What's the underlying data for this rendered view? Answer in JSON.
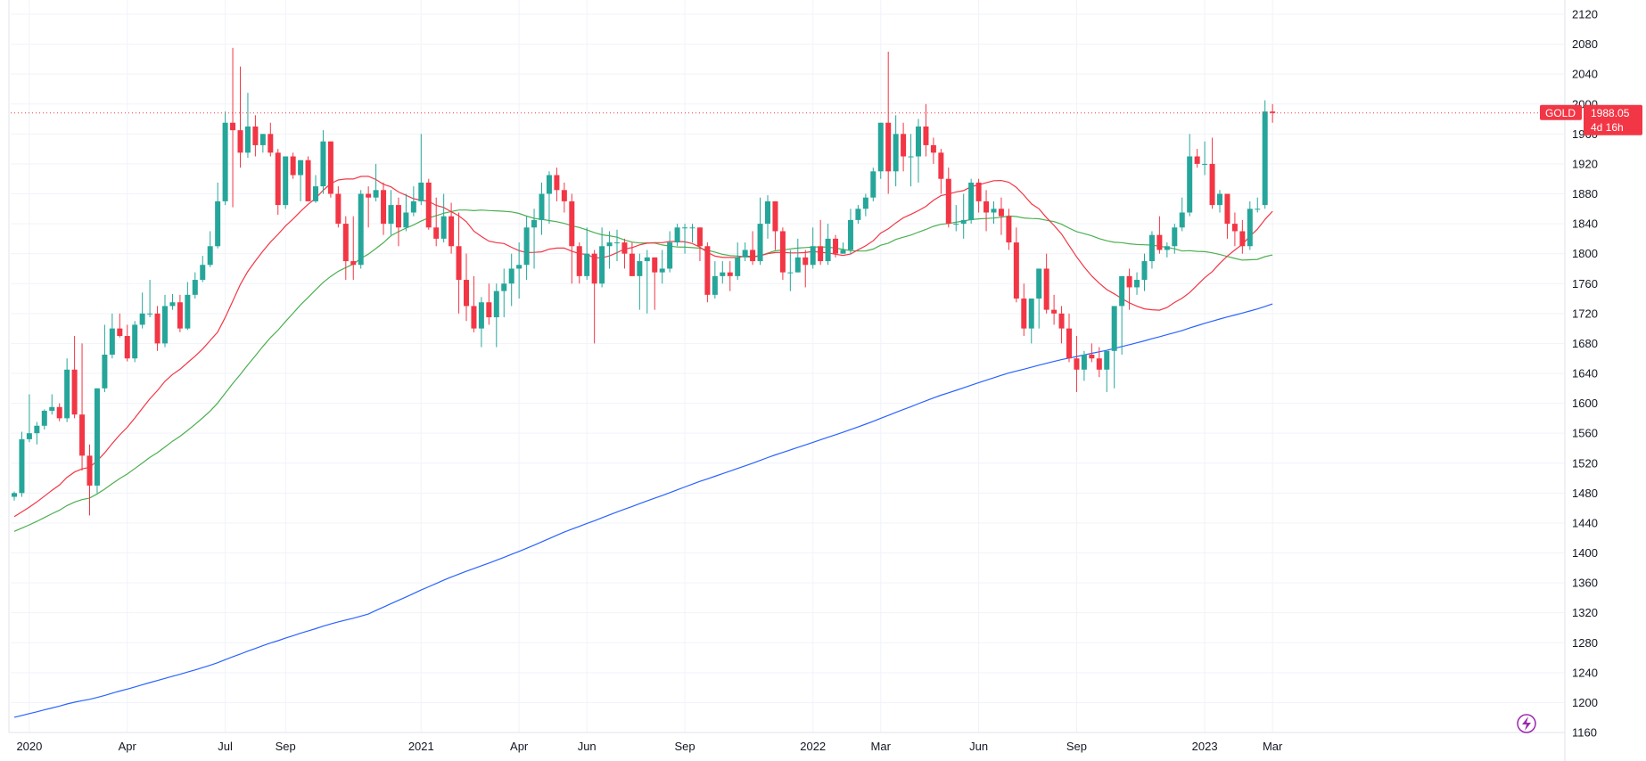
{
  "chart_data": {
    "type": "candlestick",
    "symbol": "GOLD",
    "interval": "1W",
    "ylim": [
      1160,
      2120
    ],
    "y_ticks": [
      1160,
      1200,
      1240,
      1280,
      1320,
      1360,
      1400,
      1440,
      1480,
      1520,
      1560,
      1600,
      1640,
      1680,
      1720,
      1760,
      1800,
      1840,
      1880,
      1920,
      1960,
      2000,
      2040,
      2080,
      2120
    ],
    "x_tick_labels": [
      {
        "label": "2020",
        "week": 2
      },
      {
        "label": "Apr",
        "week": 15
      },
      {
        "label": "Jul",
        "week": 28
      },
      {
        "label": "Sep",
        "week": 36
      },
      {
        "label": "2021",
        "week": 54
      },
      {
        "label": "Apr",
        "week": 67
      },
      {
        "label": "Jun",
        "week": 76
      },
      {
        "label": "Sep",
        "week": 89
      },
      {
        "label": "2022",
        "week": 106
      },
      {
        "label": "Mar",
        "week": 115
      },
      {
        "label": "Jun",
        "week": 128
      },
      {
        "label": "Sep",
        "week": 141
      },
      {
        "label": "2023",
        "week": 158
      },
      {
        "label": "Mar",
        "week": 167
      }
    ],
    "last_price": {
      "symbol": "GOLD",
      "price": "1988.05",
      "countdown": "4d 16h",
      "value": 1988.05
    },
    "colors": {
      "up": "#26a69a",
      "down": "#f23645",
      "ma_fast": "#f23645",
      "ma_mid": "#4caf50",
      "ma_slow": "#2962ff",
      "grid": "#f0f3fa"
    },
    "closes": [
      1480,
      1552,
      1560,
      1570,
      1590,
      1595,
      1580,
      1645,
      1585,
      1530,
      1490,
      1620,
      1665,
      1700,
      1690,
      1660,
      1705,
      1720,
      1720,
      1680,
      1730,
      1735,
      1700,
      1745,
      1765,
      1785,
      1810,
      1870,
      1975,
      1965,
      1935,
      1970,
      1945,
      1960,
      1935,
      1865,
      1930,
      1905,
      1925,
      1870,
      1890,
      1950,
      1880,
      1840,
      1790,
      1785,
      1880,
      1875,
      1885,
      1840,
      1865,
      1835,
      1855,
      1870,
      1895,
      1835,
      1820,
      1850,
      1810,
      1765,
      1730,
      1700,
      1735,
      1715,
      1750,
      1760,
      1780,
      1785,
      1835,
      1845,
      1880,
      1905,
      1885,
      1870,
      1810,
      1770,
      1800,
      1760,
      1810,
      1815,
      1815,
      1800,
      1770,
      1790,
      1795,
      1775,
      1780,
      1815,
      1835,
      1835,
      1835,
      1810,
      1745,
      1770,
      1775,
      1770,
      1795,
      1805,
      1790,
      1840,
      1870,
      1830,
      1775,
      1775,
      1795,
      1785,
      1810,
      1790,
      1820,
      1800,
      1805,
      1845,
      1860,
      1875,
      1910,
      1975,
      1910,
      1960,
      1930,
      1930,
      1970,
      1945,
      1935,
      1900,
      1840,
      1840,
      1845,
      1895,
      1870,
      1855,
      1860,
      1850,
      1815,
      1740,
      1700,
      1740,
      1780,
      1725,
      1720,
      1700,
      1660,
      1645,
      1665,
      1660,
      1645,
      1670,
      1730,
      1770,
      1755,
      1765,
      1790,
      1825,
      1805,
      1810,
      1835,
      1855,
      1930,
      1920,
      1920,
      1865,
      1880,
      1840,
      1830,
      1810,
      1860,
      1860,
      1990,
      1988
    ],
    "opens": [
      1475,
      1480,
      1552,
      1560,
      1570,
      1590,
      1595,
      1580,
      1645,
      1585,
      1530,
      1490,
      1620,
      1665,
      1700,
      1690,
      1660,
      1705,
      1720,
      1720,
      1680,
      1730,
      1735,
      1700,
      1745,
      1765,
      1785,
      1810,
      1870,
      1975,
      1965,
      1935,
      1970,
      1945,
      1960,
      1935,
      1865,
      1930,
      1905,
      1925,
      1870,
      1890,
      1950,
      1880,
      1840,
      1790,
      1785,
      1880,
      1875,
      1885,
      1840,
      1865,
      1835,
      1855,
      1870,
      1895,
      1835,
      1820,
      1850,
      1810,
      1765,
      1730,
      1700,
      1735,
      1715,
      1750,
      1760,
      1780,
      1785,
      1835,
      1845,
      1880,
      1905,
      1885,
      1870,
      1810,
      1770,
      1800,
      1760,
      1810,
      1815,
      1815,
      1800,
      1770,
      1790,
      1795,
      1775,
      1780,
      1815,
      1835,
      1835,
      1835,
      1810,
      1745,
      1770,
      1775,
      1770,
      1795,
      1805,
      1790,
      1840,
      1870,
      1830,
      1775,
      1775,
      1795,
      1785,
      1810,
      1790,
      1820,
      1800,
      1805,
      1845,
      1860,
      1875,
      1910,
      1975,
      1910,
      1960,
      1930,
      1930,
      1970,
      1945,
      1935,
      1900,
      1840,
      1840,
      1845,
      1895,
      1870,
      1855,
      1860,
      1850,
      1815,
      1740,
      1700,
      1740,
      1780,
      1725,
      1720,
      1700,
      1660,
      1645,
      1665,
      1660,
      1645,
      1670,
      1730,
      1770,
      1755,
      1765,
      1790,
      1825,
      1805,
      1810,
      1835,
      1855,
      1930,
      1920,
      1920,
      1865,
      1880,
      1840,
      1830,
      1810,
      1860,
      1865,
      1990
    ],
    "highs": [
      1482,
      1562,
      1612,
      1575,
      1592,
      1612,
      1600,
      1660,
      1690,
      1680,
      1545,
      1620,
      1705,
      1720,
      1720,
      1705,
      1710,
      1748,
      1765,
      1730,
      1745,
      1746,
      1745,
      1762,
      1775,
      1797,
      1830,
      1895,
      1990,
      2075,
      2050,
      2015,
      1985,
      1960,
      1975,
      1940,
      1930,
      1935,
      1925,
      1930,
      1905,
      1965,
      1950,
      1890,
      1850,
      1850,
      1885,
      1890,
      1920,
      1895,
      1885,
      1875,
      1880,
      1890,
      1960,
      1900,
      1875,
      1880,
      1868,
      1855,
      1800,
      1770,
      1742,
      1760,
      1760,
      1780,
      1800,
      1815,
      1850,
      1860,
      1895,
      1910,
      1915,
      1895,
      1880,
      1815,
      1835,
      1805,
      1835,
      1830,
      1832,
      1820,
      1815,
      1800,
      1805,
      1795,
      1805,
      1830,
      1840,
      1840,
      1840,
      1835,
      1815,
      1790,
      1790,
      1790,
      1815,
      1815,
      1830,
      1875,
      1878,
      1870,
      1835,
      1805,
      1820,
      1805,
      1835,
      1845,
      1840,
      1825,
      1815,
      1860,
      1865,
      1880,
      1915,
      1975,
      2070,
      1985,
      1975,
      1960,
      1980,
      2000,
      1955,
      1940,
      1915,
      1865,
      1880,
      1900,
      1900,
      1885,
      1870,
      1875,
      1860,
      1835,
      1760,
      1740,
      1780,
      1800,
      1745,
      1730,
      1720,
      1690,
      1670,
      1680,
      1675,
      1665,
      1680,
      1730,
      1780,
      1775,
      1800,
      1830,
      1850,
      1815,
      1840,
      1875,
      1960,
      1940,
      1950,
      1955,
      1885,
      1880,
      1855,
      1845,
      1870,
      1875,
      2005,
      2000
    ],
    "lows": [
      1470,
      1475,
      1548,
      1545,
      1565,
      1585,
      1576,
      1575,
      1580,
      1510,
      1450,
      1480,
      1615,
      1660,
      1688,
      1656,
      1655,
      1700,
      1715,
      1670,
      1675,
      1725,
      1695,
      1698,
      1740,
      1762,
      1782,
      1807,
      1865,
      1862,
      1915,
      1928,
      1930,
      1935,
      1930,
      1852,
      1860,
      1900,
      1870,
      1870,
      1868,
      1880,
      1875,
      1835,
      1765,
      1765,
      1780,
      1835,
      1870,
      1825,
      1825,
      1810,
      1830,
      1850,
      1865,
      1832,
      1810,
      1815,
      1800,
      1720,
      1710,
      1695,
      1675,
      1705,
      1675,
      1715,
      1730,
      1740,
      1765,
      1780,
      1825,
      1840,
      1870,
      1855,
      1760,
      1760,
      1765,
      1680,
      1755,
      1780,
      1790,
      1780,
      1770,
      1725,
      1720,
      1725,
      1760,
      1775,
      1810,
      1800,
      1815,
      1790,
      1735,
      1740,
      1760,
      1750,
      1765,
      1790,
      1785,
      1785,
      1820,
      1805,
      1765,
      1750,
      1775,
      1755,
      1780,
      1785,
      1785,
      1795,
      1800,
      1800,
      1840,
      1850,
      1870,
      1900,
      1880,
      1890,
      1910,
      1890,
      1895,
      1930,
      1920,
      1880,
      1835,
      1830,
      1820,
      1840,
      1855,
      1830,
      1840,
      1825,
      1805,
      1735,
      1690,
      1680,
      1700,
      1720,
      1705,
      1680,
      1655,
      1615,
      1630,
      1655,
      1635,
      1615,
      1620,
      1665,
      1725,
      1745,
      1750,
      1780,
      1800,
      1795,
      1800,
      1830,
      1850,
      1915,
      1905,
      1860,
      1855,
      1820,
      1810,
      1800,
      1805,
      1855,
      1860,
      1975
    ]
  }
}
